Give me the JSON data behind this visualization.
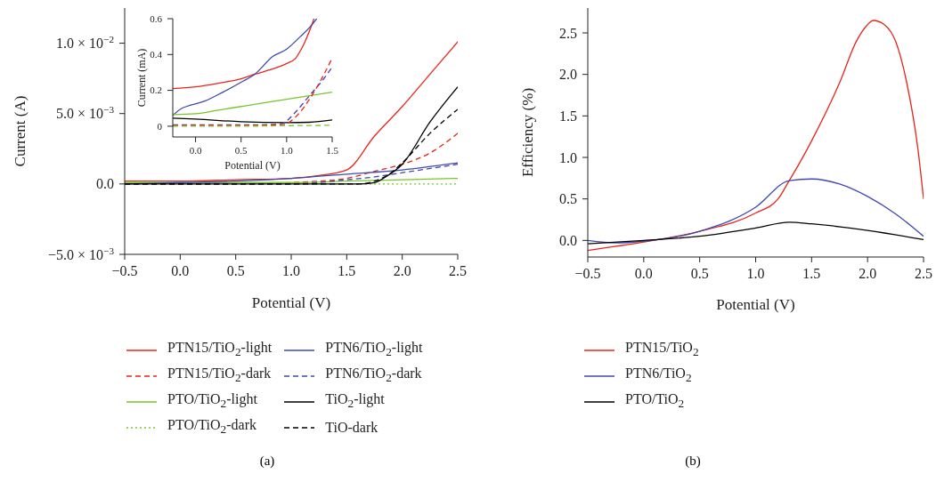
{
  "chart_data": [
    {
      "type": "line",
      "xlabel": "Potential (V)",
      "ylabel": "Current (A)",
      "xlim": [
        -0.5,
        2.5
      ],
      "ylim": [
        -0.005,
        0.0125
      ],
      "xticks": [
        {
          "value": -0.5,
          "label": "−0.5"
        },
        {
          "value": 0,
          "label": "0.0"
        },
        {
          "value": 0.5,
          "label": "0.5"
        },
        {
          "value": 1,
          "label": "1.0"
        },
        {
          "value": 1.5,
          "label": "1.5"
        },
        {
          "value": 2,
          "label": "2.0"
        },
        {
          "value": 2.5,
          "label": "2.5"
        }
      ],
      "yticks": [
        {
          "value": -0.005,
          "label": "−5.0 × 10$^{−3}$"
        },
        {
          "value": 0,
          "label": "0.0"
        },
        {
          "value": 0.005,
          "label": "5.0 × 10$^{−3}$"
        },
        {
          "value": 0.01,
          "label": "1.0 × 10$^{−2}$"
        }
      ],
      "legend": "bottom",
      "annotations": [
        "(a)"
      ],
      "series": [
        {
          "name": "PTN15/TiO$_{2}$-light",
          "color": "#e8251c",
          "line_style": "solid",
          "x": [
            -0.5,
            0,
            0.5,
            1,
            1.25,
            1.5,
            1.75,
            2,
            2.25,
            2.5
          ],
          "values": [
            0.0002,
            0.0002,
            0.0003,
            0.0004,
            0.0006,
            0.001,
            0.0034,
            0.0055,
            0.0078,
            0.0101
          ]
        },
        {
          "name": "PTN15/TiO$_{2}$-dark",
          "color": "#e8251c",
          "line_style": "dashed",
          "x": [
            -0.5,
            0.5,
            1,
            1.25,
            1.5,
            1.75,
            2,
            2.25,
            2.5
          ],
          "values": [
            0,
            0,
            0.0001,
            0.0002,
            0.0004,
            0.0009,
            0.0014,
            0.0022,
            0.0036
          ]
        },
        {
          "name": "PTO/TiO$_{2}$-light",
          "color": "#7ac52a",
          "line_style": "solid",
          "x": [
            -0.5,
            0.5,
            1,
            1.5,
            2,
            2.5
          ],
          "values": [
            0.0001,
            0.0001,
            0.0001,
            0.0002,
            0.0003,
            0.0004
          ]
        },
        {
          "name": "PTO/TiO$_{2}$-dark",
          "color": "#7ac52a",
          "line_style": "dotted",
          "x": [
            -0.5,
            1,
            2,
            2.5
          ],
          "values": [
            0,
            0,
            0,
            0
          ]
        },
        {
          "name": "PTN6/TiO$_{2}$-light",
          "color": "#3f48b0",
          "line_style": "solid",
          "x": [
            -0.5,
            0,
            0.5,
            1,
            1.5,
            2,
            2.5
          ],
          "values": [
            0,
            0.0001,
            0.0002,
            0.0004,
            0.0007,
            0.001,
            0.0015
          ]
        },
        {
          "name": "PTN6/TiO$_{2}$-dark",
          "color": "#3f48b0",
          "line_style": "dashed",
          "x": [
            -0.5,
            1,
            1.25,
            1.5,
            1.75,
            2,
            2.25,
            2.5
          ],
          "values": [
            0,
            0,
            0.0001,
            0.0003,
            0.0005,
            0.0008,
            0.0011,
            0.0014
          ]
        },
        {
          "name": "TiO$_{2}$-light",
          "color": "#000000",
          "line_style": "solid",
          "x": [
            -0.5,
            1,
            1.6,
            1.75,
            1.85,
            2,
            2.25,
            2.5
          ],
          "values": [
            0,
            0,
            0,
            0.0001,
            0.0005,
            0.0014,
            0.0044,
            0.0069
          ]
        },
        {
          "name": "TiO-dark",
          "color": "#000000",
          "line_style": "dashed",
          "x": [
            -0.5,
            1,
            1.6,
            1.75,
            1.9,
            2,
            2.25,
            2.5
          ],
          "values": [
            0,
            0,
            0,
            0.0002,
            0.0008,
            0.0015,
            0.0036,
            0.0053
          ]
        }
      ]
    },
    {
      "type": "line",
      "xlabel": "Potential (V)",
      "ylabel": "Current (mA)",
      "xlim": [
        -0.25,
        1.5
      ],
      "ylim": [
        -0.06,
        0.6
      ],
      "xticks": [
        {
          "value": 0,
          "label": "0.0"
        },
        {
          "value": 0.5,
          "label": "0.5"
        },
        {
          "value": 1,
          "label": "1.0"
        },
        {
          "value": 1.5,
          "label": "1.5"
        }
      ],
      "yticks": [
        0,
        0.2,
        0.4,
        0.6
      ],
      "series": [
        {
          "color": "#e8251c",
          "line_style": "solid",
          "x": [
            -0.25,
            0,
            0.25,
            0.5,
            0.65,
            0.85,
            1,
            1.1,
            1.15,
            1.2,
            1.25,
            1.3
          ],
          "values": [
            0.21,
            0.22,
            0.24,
            0.265,
            0.29,
            0.32,
            0.35,
            0.38,
            0.42,
            0.47,
            0.53,
            0.6
          ]
        },
        {
          "color": "#3f48b0",
          "line_style": "solid",
          "x": [
            -0.25,
            -0.15,
            -0.1,
            0.1,
            0.3,
            0.5,
            0.65,
            0.85,
            1,
            1.15,
            1.25,
            1.33
          ],
          "values": [
            0.06,
            0.1,
            0.11,
            0.14,
            0.19,
            0.245,
            0.29,
            0.39,
            0.43,
            0.5,
            0.55,
            0.6
          ]
        },
        {
          "color": "#7ac52a",
          "line_style": "solid",
          "x": [
            -0.25,
            0,
            0.25,
            0.5,
            0.75,
            1,
            1.25,
            1.5
          ],
          "values": [
            0.065,
            0.07,
            0.09,
            0.11,
            0.13,
            0.15,
            0.17,
            0.19
          ]
        },
        {
          "color": "#000000",
          "line_style": "solid",
          "x": [
            -0.25,
            0,
            0.5,
            1,
            1.25,
            1.5
          ],
          "values": [
            0.045,
            0.04,
            0.025,
            0.02,
            0.022,
            0.035
          ]
        },
        {
          "color": "#3f48b0",
          "line_style": "dashed",
          "x": [
            -0.25,
            0.5,
            0.9,
            1,
            1.1,
            1.25,
            1.4,
            1.5
          ],
          "values": [
            0.007,
            0.007,
            0.01,
            0.03,
            0.08,
            0.17,
            0.26,
            0.33
          ]
        },
        {
          "color": "#e8251c",
          "line_style": "dashed",
          "x": [
            -0.25,
            0.5,
            0.97,
            1.05,
            1.15,
            1.25,
            1.4,
            1.5
          ],
          "values": [
            0.005,
            0.005,
            0.01,
            0.03,
            0.08,
            0.15,
            0.28,
            0.38
          ]
        },
        {
          "color": "#7ac52a",
          "line_style": "dashed",
          "x": [
            -0.25,
            0.5,
            1,
            1.5
          ],
          "values": [
            0,
            0,
            0.003,
            0.005
          ]
        }
      ]
    },
    {
      "type": "line",
      "xlabel": "Potential (V)",
      "ylabel": "Efficiency (%)",
      "xlim": [
        -0.5,
        2.5
      ],
      "ylim": [
        -0.2,
        2.8
      ],
      "xticks": [
        {
          "value": -0.5,
          "label": "−0.5"
        },
        {
          "value": 0,
          "label": "0.0"
        },
        {
          "value": 0.5,
          "label": "0.5"
        },
        {
          "value": 1,
          "label": "1.0"
        },
        {
          "value": 1.5,
          "label": "1.5"
        },
        {
          "value": 2,
          "label": "2.0"
        },
        {
          "value": 2.5,
          "label": "2.5"
        }
      ],
      "yticks": [
        {
          "value": 0,
          "label": "0.0"
        },
        {
          "value": 0.5,
          "label": "0.5"
        },
        {
          "value": 1,
          "label": "1.0"
        },
        {
          "value": 1.5,
          "label": "1.5"
        },
        {
          "value": 2,
          "label": "2.0"
        },
        {
          "value": 2.5,
          "label": "2.5"
        }
      ],
      "legend": "bottom",
      "annotations": [
        "(b)"
      ],
      "series": [
        {
          "name": "PTN15/TiO$_{2}$",
          "color": "#e8251c",
          "line_style": "solid",
          "x": [
            -0.5,
            0,
            0.5,
            1,
            1.2,
            1.3,
            1.4,
            1.5,
            1.75,
            1.9,
            2,
            2.05,
            2.15,
            2.25,
            2.35,
            2.45,
            2.5
          ],
          "values": [
            -0.12,
            -0.02,
            0.11,
            0.33,
            0.5,
            0.72,
            0.95,
            1.2,
            1.9,
            2.4,
            2.6,
            2.65,
            2.6,
            2.4,
            1.9,
            1.1,
            0.5
          ]
        },
        {
          "name": "PTN6/TiO$_{2}$",
          "color": "#3f48b0",
          "line_style": "solid",
          "x": [
            -0.5,
            -0.25,
            0,
            0.5,
            1,
            1.3,
            1.5,
            1.75,
            2,
            2.25,
            2.5
          ],
          "values": [
            0,
            -0.03,
            -0.01,
            0.11,
            0.4,
            0.72,
            0.74,
            0.68,
            0.53,
            0.32,
            0.05
          ]
        },
        {
          "name": "PTO/TiO$_{2}$",
          "color": "#000000",
          "line_style": "solid",
          "x": [
            -0.5,
            0,
            0.5,
            1,
            1.3,
            1.5,
            2,
            2.5
          ],
          "values": [
            -0.04,
            0,
            0.05,
            0.15,
            0.22,
            0.2,
            0.12,
            0.01
          ]
        }
      ]
    }
  ]
}
